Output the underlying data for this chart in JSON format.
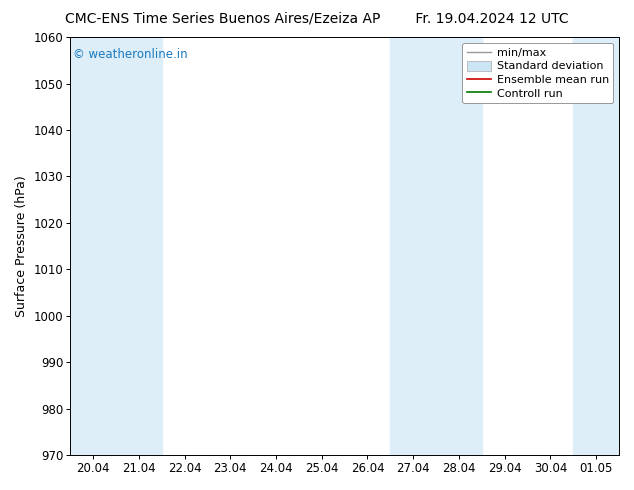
{
  "title_left": "CMC-ENS Time Series Buenos Aires/Ezeiza AP",
  "title_right": "Fr. 19.04.2024 12 UTC",
  "ylabel": "Surface Pressure (hPa)",
  "ylim": [
    970,
    1060
  ],
  "yticks": [
    970,
    980,
    990,
    1000,
    1010,
    1020,
    1030,
    1040,
    1050,
    1060
  ],
  "xlabels": [
    "20.04",
    "21.04",
    "22.04",
    "23.04",
    "24.04",
    "25.04",
    "26.04",
    "27.04",
    "28.04",
    "29.04",
    "30.04",
    "01.05"
  ],
  "background_color": "#ffffff",
  "plot_bg_color": "#ffffff",
  "shaded_band_color": "#ddeef8",
  "shaded_col_indices": [
    0,
    1,
    7,
    8,
    11
  ],
  "watermark_text": "© weatheronline.in",
  "watermark_color": "#1a7abf",
  "legend_items": [
    {
      "label": "min/max",
      "color": "#aaaaaa",
      "style": "errorbar"
    },
    {
      "label": "Standard deviation",
      "color": "#cce5f5",
      "style": "box"
    },
    {
      "label": "Ensemble mean run",
      "color": "#cc0000",
      "style": "line"
    },
    {
      "label": "Controll run",
      "color": "#007700",
      "style": "line"
    }
  ],
  "title_fontsize": 10,
  "axis_label_fontsize": 9,
  "tick_fontsize": 8.5,
  "legend_fontsize": 8
}
